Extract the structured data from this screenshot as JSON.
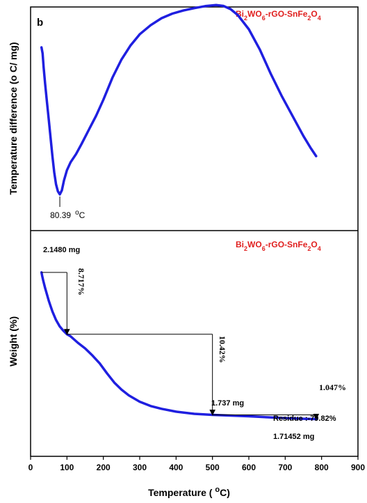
{
  "chart_data": [
    {
      "panel": "dta",
      "type": "line",
      "panel_label": "b",
      "title_main": "Bi",
      "title_sub1": "2",
      "title_mid": "WO",
      "title_sub2": "6",
      "title_mid2": "-rGO-SnFe",
      "title_sub3": "2",
      "title_mid3": "O",
      "title_sub4": "4",
      "ylabel": "Temperature difference (o C/ mg)",
      "xlim": [
        0,
        900
      ],
      "ylim": [
        0,
        100
      ],
      "series": [
        {
          "color": "#1f1fe0",
          "x": [
            30,
            33,
            36,
            40,
            45,
            50,
            55,
            60,
            65,
            70,
            75,
            80.39,
            86,
            92,
            100,
            110,
            125,
            140,
            160,
            180,
            200,
            225,
            250,
            275,
            300,
            330,
            360,
            390,
            420,
            450,
            480,
            510,
            530,
            550,
            570,
            600,
            630,
            660,
            690,
            720,
            750,
            770,
            785
          ],
          "y": [
            82,
            79,
            72,
            64,
            55,
            46,
            37,
            28,
            20,
            14,
            10.5,
            9,
            11,
            16,
            21,
            25,
            29,
            34,
            41,
            48,
            56,
            67,
            76,
            83,
            88.5,
            93,
            96.5,
            98.8,
            100.3,
            101.5,
            102.5,
            103,
            102.6,
            101,
            98,
            91,
            81,
            69,
            58,
            48,
            38,
            32,
            28
          ]
        }
      ],
      "annotations": [
        {
          "x": 80.39,
          "y": 9,
          "value": "80.39",
          "unit_sup": "o",
          "unit": "C"
        }
      ]
    },
    {
      "panel": "tga",
      "type": "line",
      "title_main": "Bi",
      "title_sub1": "2",
      "title_mid": "WO",
      "title_sub2": "6",
      "title_mid2": "-rGO-SnFe",
      "title_sub3": "2",
      "title_mid3": "O",
      "title_sub4": "4",
      "ylabel": "Weight (%)",
      "xlabel_main": "Temperature ( ",
      "xlabel_sup": "o",
      "xlabel_end": "C)",
      "xlim": [
        0,
        900
      ],
      "ylim": [
        75,
        105
      ],
      "xticks": [
        0,
        100,
        200,
        300,
        400,
        500,
        600,
        700,
        800,
        900
      ],
      "series": [
        {
          "color": "#1f1fe0",
          "x": [
            30,
            32,
            35,
            40,
            50,
            60,
            70,
            80,
            90,
            100,
            110,
            130,
            150,
            170,
            190,
            210,
            230,
            250,
            270,
            300,
            330,
            360,
            400,
            450,
            500,
            550,
            600,
            650,
            700,
            750,
            785
          ],
          "y": [
            100,
            99.5,
            98.8,
            97.8,
            96,
            94.5,
            93.3,
            92.4,
            91.8,
            91.3,
            91,
            90.1,
            89.3,
            88.3,
            87.2,
            85.8,
            84.5,
            83.5,
            82.7,
            81.8,
            81.2,
            80.8,
            80.4,
            80.1,
            79.95,
            79.85,
            79.75,
            79.62,
            79.5,
            79.4,
            79.36
          ]
        }
      ],
      "annotations": {
        "initial_mass": "2.1480 mg",
        "loss1": "8.717%",
        "loss2": "10.42%",
        "loss3": "1.047%",
        "mass_at_500": "1.737 mg",
        "residue": "Residue :-79.82%",
        "final_mass": "1.71452 mg"
      }
    }
  ]
}
